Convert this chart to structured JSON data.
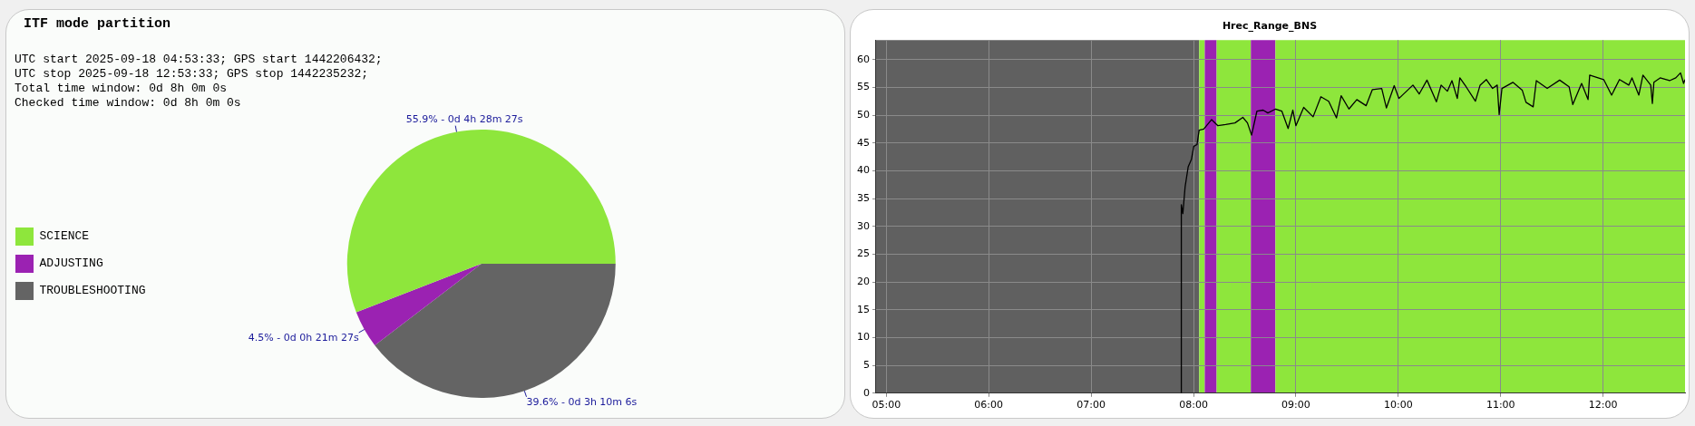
{
  "chart_data": [
    {
      "type": "pie",
      "title": "ITF mode partition",
      "annotations": [
        "UTC start 2025-09-18 04:53:33; GPS start 1442206432;",
        "UTC stop 2025-09-18 12:53:33; GPS stop 1442235232;",
        "Total time window: 0d 8h 0m 0s",
        "Checked time window: 0d 8h 0m 0s"
      ],
      "categories": [
        "SCIENCE",
        "ADJUSTING",
        "TROUBLESHOOTING"
      ],
      "values": [
        55.9,
        4.5,
        39.6
      ],
      "colors": [
        "#8ee63c",
        "#9b22b2",
        "#646464"
      ],
      "value_labels": [
        "55.9% - 0d 4h 28m 27s",
        "4.5% - 0d 0h 21m 27s",
        "39.6% - 0d 3h 10m 6s"
      ],
      "legend": "left"
    },
    {
      "type": "line",
      "title": "Hrec_Range_BNS",
      "x": [
        7.881,
        7.881,
        7.896,
        7.918,
        7.948,
        7.979,
        8.003,
        8.034,
        8.055,
        8.1,
        8.177,
        8.238,
        8.314,
        8.405,
        8.482,
        8.527,
        8.567,
        8.619,
        8.68,
        8.726,
        8.802,
        8.863,
        8.924,
        8.97,
        9.0,
        9.076,
        9.168,
        9.244,
        9.32,
        9.396,
        9.442,
        9.518,
        9.595,
        9.686,
        9.747,
        9.838,
        9.884,
        9.96,
        10.006,
        10.143,
        10.204,
        10.28,
        10.372,
        10.418,
        10.479,
        10.524,
        10.576,
        10.601,
        10.662,
        10.753,
        10.799,
        10.86,
        10.921,
        10.966,
        10.985,
        11.012,
        11.119,
        11.21,
        11.247,
        11.317,
        11.348,
        11.454,
        11.576,
        11.668,
        11.704,
        11.79,
        11.853,
        11.869,
        12.006,
        12.083,
        12.16,
        12.251,
        12.282,
        12.349,
        12.389,
        12.465,
        12.481,
        12.496,
        12.557,
        12.649,
        12.71,
        12.756,
        12.786,
        12.8
      ],
      "values": [
        0,
        33.9,
        32.3,
        37.1,
        40.7,
        42.0,
        44.4,
        44.7,
        47.3,
        47.5,
        49.2,
        48.1,
        48.3,
        48.6,
        49.6,
        48.6,
        46.4,
        50.7,
        50.9,
        50.4,
        51.1,
        50.7,
        47.6,
        50.9,
        48.1,
        51.4,
        49.7,
        53.3,
        52.5,
        49.5,
        53.5,
        51.1,
        52.8,
        51.7,
        54.6,
        54.8,
        51.3,
        55.3,
        53.0,
        55.4,
        53.8,
        56.3,
        52.4,
        55.4,
        54.3,
        56.2,
        53.0,
        56.7,
        55.1,
        52.5,
        55.4,
        56.4,
        54.8,
        55.4,
        50.1,
        54.8,
        55.9,
        54.5,
        52.3,
        51.5,
        56.2,
        54.8,
        56.3,
        55.1,
        51.9,
        55.7,
        52.8,
        57.2,
        56.4,
        53.6,
        56.4,
        55.4,
        56.7,
        53.6,
        57.2,
        55.4,
        52.1,
        55.9,
        56.7,
        56.2,
        56.7,
        57.6,
        55.7,
        56.4
      ],
      "color": "#000000",
      "xlim": [
        4.9,
        12.8
      ],
      "xticks": [
        {
          "value": 5,
          "label": "05:00"
        },
        {
          "value": 6,
          "label": "06:00"
        },
        {
          "value": 7,
          "label": "07:00"
        },
        {
          "value": 8,
          "label": "08:00"
        },
        {
          "value": 9,
          "label": "09:00"
        },
        {
          "value": 10,
          "label": "10:00"
        },
        {
          "value": 11,
          "label": "11:00"
        },
        {
          "value": 12,
          "label": "12:00"
        }
      ],
      "ylim": [
        0,
        63.5
      ],
      "yticks": [
        0,
        5,
        10,
        15,
        20,
        25,
        30,
        35,
        40,
        45,
        50,
        55,
        60
      ],
      "bands": [
        {
          "axis": "x",
          "from": 4.9,
          "to": 8.055,
          "color": "#606060"
        },
        {
          "axis": "x",
          "from": 8.055,
          "to": 8.11,
          "color": "#8ee63c"
        },
        {
          "axis": "x",
          "from": 8.11,
          "to": 8.226,
          "color": "#9b22b2"
        },
        {
          "axis": "x",
          "from": 8.226,
          "to": 8.56,
          "color": "#8ee63c"
        },
        {
          "axis": "x",
          "from": 8.56,
          "to": 8.8,
          "color": "#9b22b2"
        },
        {
          "axis": "x",
          "from": 8.8,
          "to": 12.8,
          "color": "#8ee63c"
        }
      ],
      "grid": true
    }
  ]
}
